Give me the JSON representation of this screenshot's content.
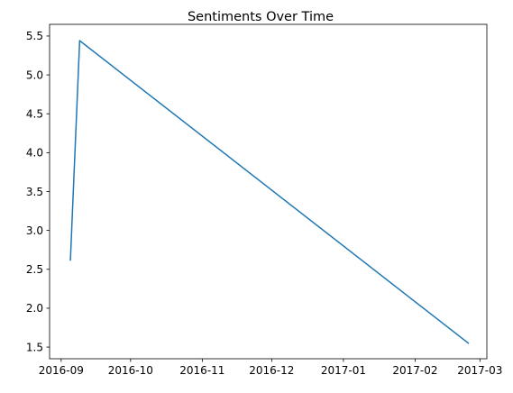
{
  "chart_data": {
    "type": "line",
    "title": "Sentiments Over Time",
    "xlabel": "",
    "ylabel": "",
    "x_axis_type": "date",
    "x": [
      "2016-09-05",
      "2016-09-09",
      "2017-02-24"
    ],
    "series": [
      {
        "values": [
          2.62,
          5.44,
          1.55
        ],
        "color": "#1f77b4"
      }
    ],
    "xlim": [
      "2016-08-27",
      "2017-03-04"
    ],
    "ylim": [
      1.35,
      5.65
    ],
    "x_ticks": [
      "2016-09",
      "2016-10",
      "2016-11",
      "2016-12",
      "2017-01",
      "2017-02",
      "2017-03"
    ],
    "y_ticks": [
      "1.5",
      "2.0",
      "2.5",
      "3.0",
      "3.5",
      "4.0",
      "4.5",
      "5.0",
      "5.5"
    ],
    "grid": false,
    "legend": "none"
  }
}
